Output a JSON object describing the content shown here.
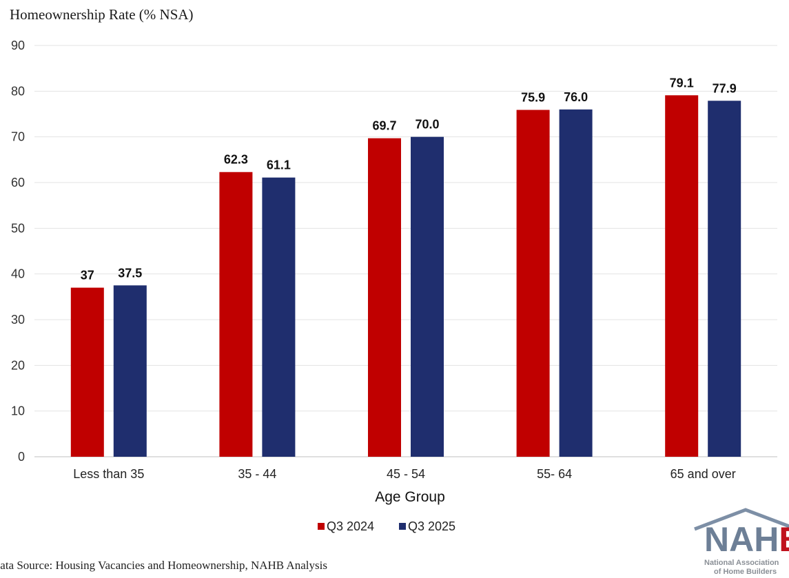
{
  "chart_data": {
    "type": "bar",
    "title": "Homeownership Rate (% NSA)",
    "xlabel": "Age Group",
    "ylabel": "",
    "ylim": [
      0,
      90
    ],
    "yticks": [
      "0",
      "10",
      "20",
      "30",
      "40",
      "50",
      "60",
      "70",
      "80",
      "90"
    ],
    "categories": [
      "Less than 35",
      "35 - 44",
      "45 - 54",
      "55- 64",
      "65 and over"
    ],
    "series": [
      {
        "name": "Q3 2024",
        "color": "#c00000",
        "values": [
          37,
          62.3,
          69.7,
          75.9,
          79.1
        ],
        "labels": [
          "37",
          "62.3",
          "69.7",
          "75.9",
          "79.1"
        ]
      },
      {
        "name": "Q3 2025",
        "color": "#1f2e6e",
        "values": [
          37.5,
          61.1,
          70.0,
          76.0,
          77.9
        ],
        "labels": [
          "37.5",
          "61.1",
          "70.0",
          "76.0",
          "77.9"
        ]
      }
    ],
    "grid": true,
    "legend_position": "bottom-center"
  },
  "source_text": "Data Source: Housing Vacancies and Homeownership, NAHB Analysis",
  "logo": {
    "text_a": "NAH",
    "text_b": "B",
    "line1": "National Association",
    "line2": "of Home Builders"
  }
}
